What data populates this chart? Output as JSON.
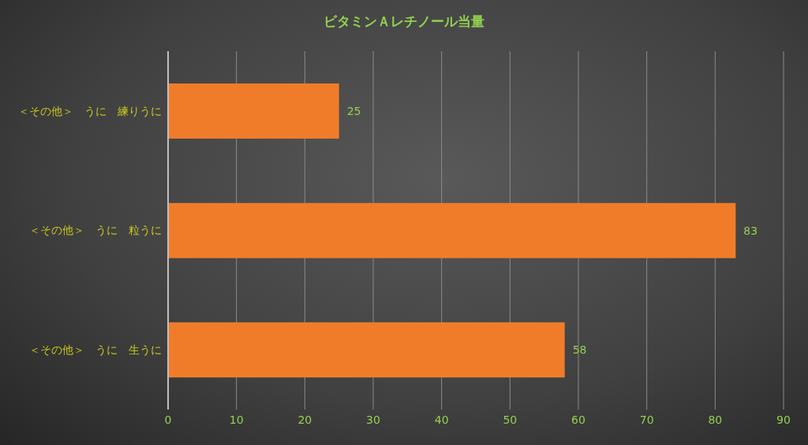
{
  "chart_data": {
    "type": "bar",
    "orientation": "horizontal",
    "title": "ビタミンＡレチノール当量",
    "categories": [
      "＜その他＞　うに　練りうに",
      "＜その他＞　うに　粒うに",
      "＜その他＞　うに　生うに"
    ],
    "values": [
      25,
      83,
      58
    ],
    "color": "#f07c2a",
    "xlim": [
      0,
      90
    ],
    "xticks": [
      0,
      10,
      20,
      30,
      40,
      50,
      60,
      70,
      80,
      90
    ],
    "grid": "x",
    "data_labels": true
  }
}
